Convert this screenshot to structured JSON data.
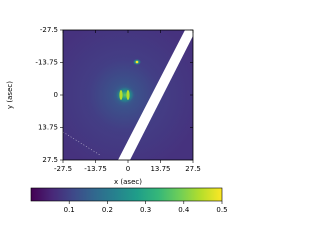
{
  "chart_data": {
    "type": "image",
    "xlabel": "x (asec)",
    "ylabel": "y (asec)",
    "xlim": [
      -27.5,
      27.5
    ],
    "xticks": [
      -27.5,
      -13.75,
      0,
      13.75,
      27.5
    ],
    "ylim": [
      27.5,
      -27.5
    ],
    "yticks": [
      -27.5,
      -13.75,
      0,
      13.75,
      27.5
    ],
    "colorbar": {
      "colormap": "viridis",
      "lim": [
        0,
        0.5
      ],
      "ticks": [
        0.1,
        0.2,
        0.3,
        0.4,
        0.5
      ]
    }
  }
}
